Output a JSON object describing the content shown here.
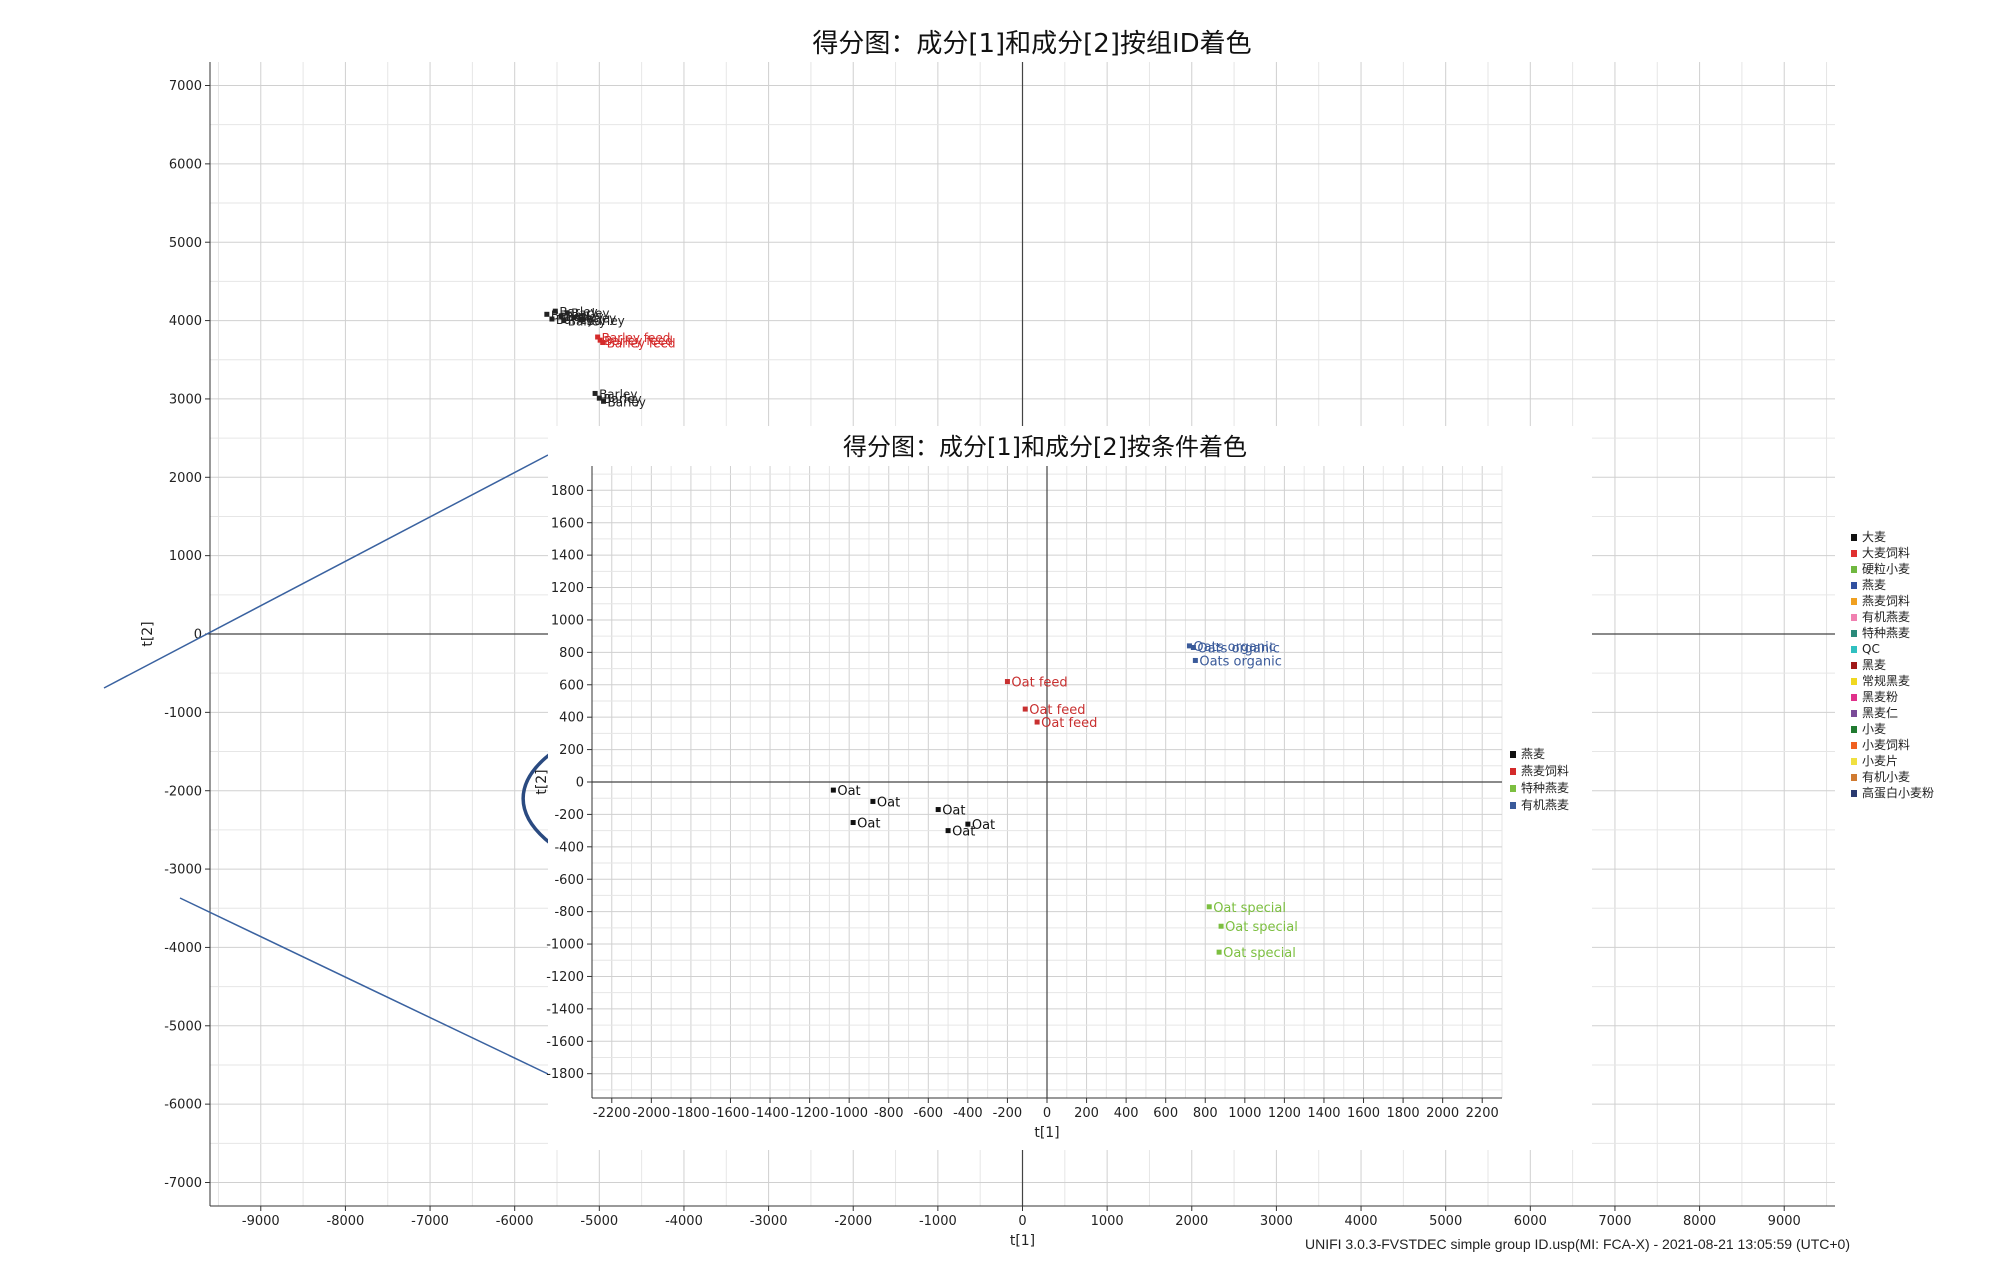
{
  "footer": "UNIFI 3.0.3-FVSTDEC simple group ID.usp(MI: FCA-X) - 2021-08-21 13:05:59 (UTC+0)",
  "chart_data": [
    {
      "type": "scatter",
      "title": "得分图：成分[1]和成分[2]按组ID着色",
      "xlabel": "t[1]",
      "ylabel": "t[2]",
      "xlim": [
        -9600,
        9600
      ],
      "ylim": [
        -7300,
        7300
      ],
      "xticks": [
        -9000,
        -8000,
        -7000,
        -6000,
        -5000,
        -4000,
        -3000,
        -2000,
        -1000,
        0,
        1000,
        2000,
        3000,
        4000,
        5000,
        6000,
        7000,
        8000,
        9000
      ],
      "yticks": [
        -7000,
        -6000,
        -5000,
        -4000,
        -3000,
        -2000,
        -1000,
        0,
        1000,
        2000,
        3000,
        4000,
        5000,
        6000,
        7000
      ],
      "grid": true,
      "legend_position": "right",
      "legend": [
        {
          "label": "大麦",
          "color": "#111111"
        },
        {
          "label": "大麦饲料",
          "color": "#e03030"
        },
        {
          "label": "硬粒小麦",
          "color": "#70b840"
        },
        {
          "label": "燕麦",
          "color": "#3050a0"
        },
        {
          "label": "燕麦饲料",
          "color": "#f0a020"
        },
        {
          "label": "有机燕麦",
          "color": "#f080b0"
        },
        {
          "label": "特种燕麦",
          "color": "#2a8a7a"
        },
        {
          "label": "QC",
          "color": "#30c0c0"
        },
        {
          "label": "黑麦",
          "color": "#a01818"
        },
        {
          "label": "常规黑麦",
          "color": "#f0d820"
        },
        {
          "label": "黑麦粉",
          "color": "#e0308a"
        },
        {
          "label": "黑麦仁",
          "color": "#7a4a98"
        },
        {
          "label": "小麦",
          "color": "#207a30"
        },
        {
          "label": "小麦饲料",
          "color": "#f06020"
        },
        {
          "label": "小麦片",
          "color": "#f0e040"
        },
        {
          "label": "有机小麦",
          "color": "#d07a30"
        },
        {
          "label": "高蛋白小麦粉",
          "color": "#2a3a70"
        }
      ],
      "series": [
        {
          "group": "大麦",
          "color": "#222222",
          "points": [
            {
              "x": -5620,
              "y": 4080,
              "label": "Barley"
            },
            {
              "x": -5520,
              "y": 4120,
              "label": "Barley"
            },
            {
              "x": -5450,
              "y": 4060,
              "label": "Barley"
            },
            {
              "x": -5380,
              "y": 4100,
              "label": "Barley"
            },
            {
              "x": -5300,
              "y": 4040,
              "label": "Barley"
            },
            {
              "x": -5200,
              "y": 4010,
              "label": "Barley"
            },
            {
              "x": -5560,
              "y": 4020,
              "label": "Barley"
            },
            {
              "x": -5420,
              "y": 4000,
              "label": "Barley"
            },
            {
              "x": -5050,
              "y": 3070,
              "label": "Barley"
            },
            {
              "x": -5000,
              "y": 3010,
              "label": "Barley"
            },
            {
              "x": -4950,
              "y": 2970,
              "label": "Barley"
            }
          ]
        },
        {
          "group": "大麦饲料",
          "color": "#d42a2a",
          "points": [
            {
              "x": -5020,
              "y": 3790,
              "label": "Barley feed"
            },
            {
              "x": -4990,
              "y": 3750,
              "label": "Barley feed"
            },
            {
              "x": -4960,
              "y": 3720,
              "label": "Barley feed"
            }
          ]
        }
      ],
      "zoom_region": {
        "x": -2200,
        "y": -2100,
        "rx": 3700,
        "ry": 1400
      }
    },
    {
      "type": "scatter",
      "title": "得分图：成分[1]和成分[2]按条件着色",
      "xlabel": "t[1]",
      "ylabel": "t[2]",
      "xlim": [
        -2300,
        2300
      ],
      "ylim": [
        -1950,
        1950
      ],
      "xticks": [
        -2200,
        -2000,
        -1800,
        -1600,
        -1400,
        -1200,
        -1000,
        -800,
        -600,
        -400,
        -200,
        0,
        200,
        400,
        600,
        800,
        1000,
        1200,
        1400,
        1600,
        1800,
        2000,
        2200
      ],
      "yticks": [
        -1800,
        -1600,
        -1400,
        -1200,
        -1000,
        -800,
        -600,
        -400,
        -200,
        0,
        200,
        400,
        600,
        800,
        1000,
        1200,
        1400,
        1600,
        1800
      ],
      "grid": true,
      "legend_position": "right",
      "legend": [
        {
          "label": "燕麦",
          "color": "#111111"
        },
        {
          "label": "燕麦饲料",
          "color": "#d42a2a"
        },
        {
          "label": "特种燕麦",
          "color": "#7cbf40"
        },
        {
          "label": "有机燕麦",
          "color": "#3a5a9a"
        }
      ],
      "series": [
        {
          "group": "燕麦",
          "color": "#111111",
          "points": [
            {
              "x": -1080,
              "y": -50,
              "label": "Oat"
            },
            {
              "x": -880,
              "y": -120,
              "label": "Oat"
            },
            {
              "x": -980,
              "y": -250,
              "label": "Oat"
            },
            {
              "x": -550,
              "y": -170,
              "label": "Oat"
            },
            {
              "x": -400,
              "y": -260,
              "label": "Oat"
            },
            {
              "x": -500,
              "y": -300,
              "label": "Oat"
            }
          ]
        },
        {
          "group": "燕麦饲料",
          "color": "#c83030",
          "points": [
            {
              "x": -200,
              "y": 620,
              "label": "Oat feed"
            },
            {
              "x": -110,
              "y": 450,
              "label": "Oat feed"
            },
            {
              "x": -50,
              "y": 370,
              "label": "Oat feed"
            }
          ]
        },
        {
          "group": "有机燕麦",
          "color": "#3a5a9a",
          "points": [
            {
              "x": 720,
              "y": 840,
              "label": "Oats organic"
            },
            {
              "x": 740,
              "y": 830,
              "label": "Oats organic"
            },
            {
              "x": 750,
              "y": 750,
              "label": "Oats organic"
            }
          ]
        },
        {
          "group": "特种燕麦",
          "color": "#7cbf40",
          "points": [
            {
              "x": 820,
              "y": -770,
              "label": "Oat special"
            },
            {
              "x": 880,
              "y": -890,
              "label": "Oat special"
            },
            {
              "x": 870,
              "y": -1050,
              "label": "Oat special"
            }
          ]
        }
      ]
    }
  ]
}
